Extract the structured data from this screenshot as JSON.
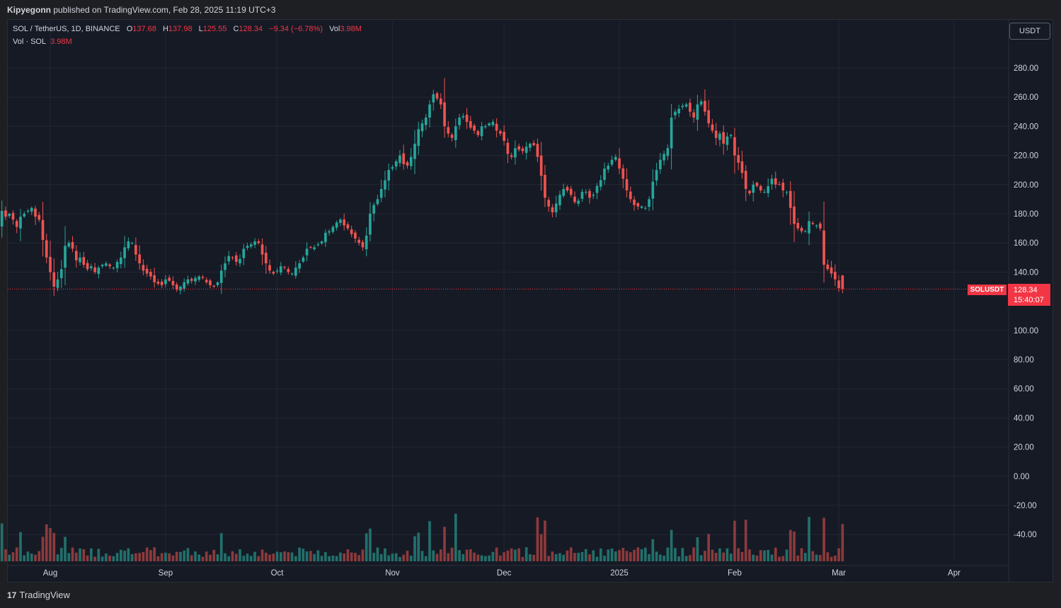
{
  "header": {
    "published_by": "Kipyegonn",
    "published_rest": " published on TradingView.com, Feb 28, 2025 11:19 UTC+3"
  },
  "legend": {
    "symbol": "SOL / TetherUS, 1D, BINANCE",
    "open_label": "O",
    "open": "137.68",
    "high_label": "H",
    "high": "137.98",
    "low_label": "L",
    "low": "125.55",
    "close_label": "C",
    "close": "128.34",
    "change": "−9.34 (−6.78%)",
    "vol_label": "Vol",
    "vol": "3.98M",
    "vol_series_label": "Vol · SOL",
    "vol_series_value": "3.98M"
  },
  "currency_button": "USDT",
  "last_price": {
    "symbol_tag": "SOLUSDT",
    "price": "128.34",
    "countdown": "15:40:07"
  },
  "footer": {
    "brand": "TradingView"
  },
  "colors": {
    "up": "#26a69a",
    "down": "#ef5350",
    "up_volume": "#22706b",
    "down_volume": "#8c3a3c",
    "background": "#161a25",
    "last_price": "#f23645"
  },
  "chart_data": {
    "type": "candlestick",
    "symbol": "SOL / TetherUS",
    "interval": "1D",
    "exchange": "BINANCE",
    "ylim": [
      -60,
      300
    ],
    "y_ticks": [
      "280.00",
      "260.00",
      "240.00",
      "220.00",
      "200.00",
      "180.00",
      "160.00",
      "140.00",
      "100.00",
      "80.00",
      "60.00",
      "40.00",
      "20.00",
      "0.00",
      "-20.00",
      "-40.00"
    ],
    "x_tick_labels": [
      "Aug",
      "Sep",
      "Oct",
      "Nov",
      "Dec",
      "2025",
      "Feb",
      "Mar",
      "Apr"
    ],
    "x_tick_dates": [
      "2024-08-01",
      "2024-09-01",
      "2024-10-01",
      "2024-11-01",
      "2024-12-01",
      "2025-01-01",
      "2025-02-01",
      "2025-03-01",
      "2025-04-01"
    ],
    "start_date": "2024-07-18",
    "closes": [
      172,
      182,
      178,
      180,
      176,
      171,
      178,
      180,
      182,
      184,
      178,
      176,
      162,
      150,
      140,
      130,
      135,
      142,
      158,
      160,
      156,
      148,
      150,
      145,
      142,
      144,
      140,
      143,
      145,
      146,
      144,
      143,
      147,
      150,
      157,
      161,
      160,
      152,
      146,
      141,
      139,
      137,
      133,
      132,
      131,
      135,
      134,
      131,
      128,
      130,
      133,
      135,
      134,
      136,
      137,
      136,
      133,
      131,
      130,
      133,
      141,
      146,
      151,
      150,
      147,
      149,
      156,
      158,
      159,
      161,
      160,
      152,
      146,
      141,
      139,
      141,
      144,
      143,
      140,
      139,
      143,
      146,
      150,
      156,
      157,
      157,
      159,
      161,
      167,
      168,
      171,
      174,
      176,
      172,
      170,
      166,
      163,
      160,
      157,
      165,
      180,
      186,
      190,
      197,
      203,
      210,
      212,
      216,
      220,
      214,
      213,
      219,
      228,
      238,
      242,
      246,
      255,
      262,
      259,
      255,
      240,
      235,
      232,
      240,
      246,
      247,
      243,
      239,
      237,
      234,
      240,
      240,
      242,
      243,
      237,
      235,
      230,
      221,
      219,
      225,
      224,
      223,
      226,
      228,
      227,
      219,
      206,
      191,
      185,
      181,
      187,
      193,
      197,
      196,
      193,
      188,
      189,
      195,
      195,
      191,
      193,
      199,
      203,
      211,
      213,
      217,
      219,
      211,
      204,
      196,
      190,
      186,
      185,
      185,
      184,
      190,
      202,
      210,
      217,
      221,
      225,
      246,
      250,
      252,
      254,
      255,
      250,
      246,
      255,
      257,
      250,
      242,
      237,
      232,
      235,
      228,
      233,
      234,
      220,
      215,
      208,
      197,
      194,
      200,
      199,
      196,
      195,
      199,
      204,
      200,
      200,
      196,
      195,
      184,
      173,
      170,
      168,
      168,
      175,
      173,
      172,
      170,
      145,
      142,
      139,
      135,
      129,
      128.34
    ],
    "ohlc_note": "Daily closes estimated from chart; last bar O 137.68 H 137.98 L 125.55 C 128.34",
    "volume_note": "Volume bars plotted in lower pane; last volume 3.98M",
    "last_close": 128.34
  }
}
